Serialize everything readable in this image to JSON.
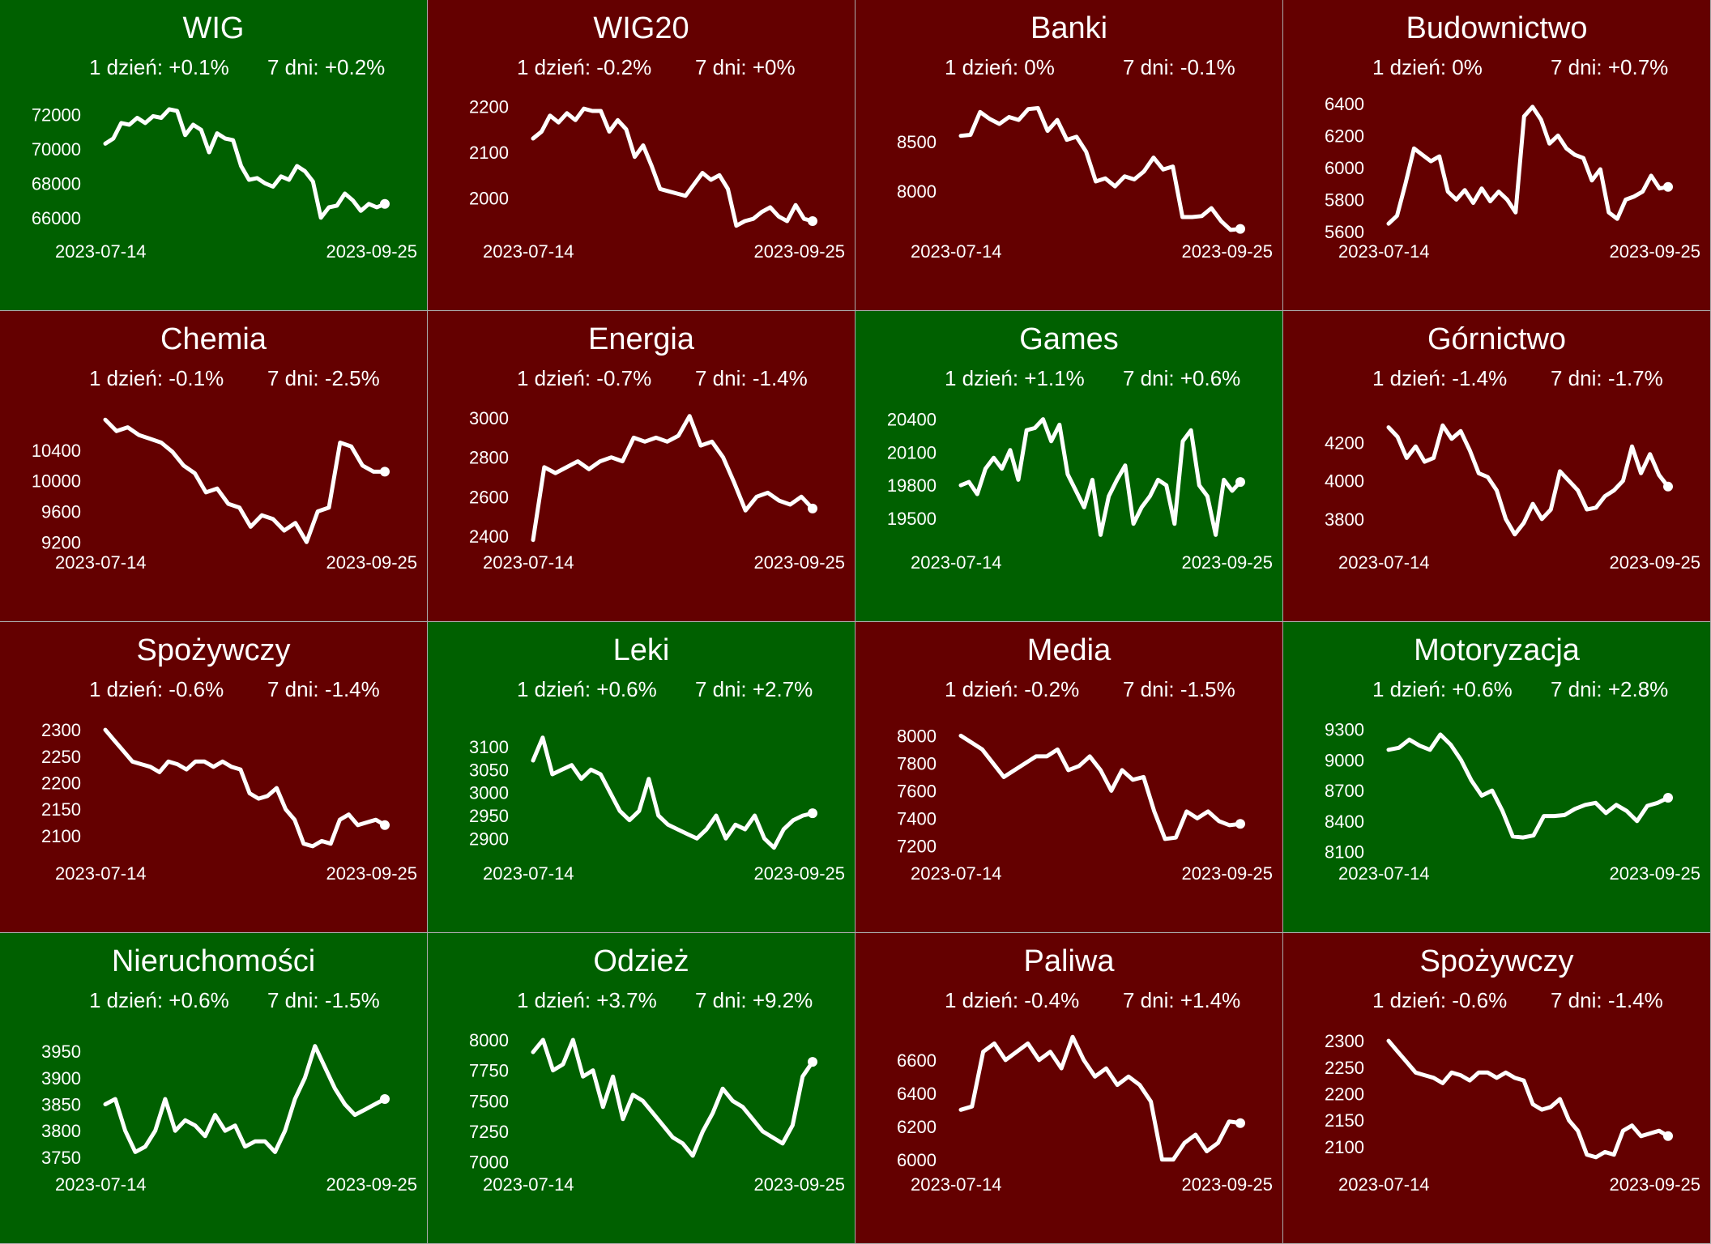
{
  "colors": {
    "up": "#006000",
    "down": "#640000",
    "line": "#ffffff"
  },
  "dates": {
    "start": "2023-07-14",
    "end": "2023-09-25"
  },
  "chart_data": [
    {
      "type": "line",
      "title": "WIG",
      "trend": "up",
      "day1": "1 dzień: +0.1%",
      "day7": "7 dni: +0.2%",
      "yticks": [
        72000,
        70000,
        68000,
        66000
      ],
      "ylim": [
        65000,
        73000
      ],
      "values": [
        70300,
        70600,
        71500,
        71400,
        71800,
        71500,
        71900,
        71800,
        72300,
        72200,
        70800,
        71400,
        71100,
        69800,
        70900,
        70600,
        70500,
        69000,
        68200,
        68300,
        68000,
        67800,
        68400,
        68200,
        69000,
        68700,
        68100,
        66000,
        66600,
        66700,
        67400,
        67000,
        66400,
        66800,
        66600,
        66800
      ]
    },
    {
      "type": "line",
      "title": "WIG20",
      "trend": "down",
      "day1": "1 dzień: -0.2%",
      "day7": "7 dni: +0%",
      "yticks": [
        2200,
        2100,
        2000
      ],
      "ylim": [
        1920,
        2220
      ],
      "values": [
        2130,
        2145,
        2180,
        2165,
        2185,
        2170,
        2195,
        2190,
        2190,
        2145,
        2170,
        2150,
        2090,
        2115,
        2070,
        2020,
        2015,
        2010,
        2005,
        2030,
        2055,
        2040,
        2050,
        2020,
        1940,
        1950,
        1955,
        1970,
        1980,
        1960,
        1950,
        1985,
        1955,
        1950
      ]
    },
    {
      "type": "line",
      "title": "Banki",
      "trend": "down",
      "day1": "1 dzień: 0%",
      "day7": "7 dni: -0.1%",
      "yticks": [
        8500,
        8000
      ],
      "ylim": [
        7560,
        8950
      ],
      "values": [
        8560,
        8570,
        8800,
        8730,
        8680,
        8750,
        8720,
        8830,
        8840,
        8610,
        8720,
        8520,
        8550,
        8400,
        8100,
        8130,
        8050,
        8150,
        8120,
        8200,
        8340,
        8220,
        8250,
        7740,
        7740,
        7750,
        7830,
        7700,
        7610,
        7620
      ]
    },
    {
      "type": "line",
      "title": "Budownictwo",
      "trend": "down",
      "day1": "1 dzień: 0%",
      "day7": "7 dni: +0.7%",
      "yticks": [
        6400,
        6200,
        6000,
        5800,
        5600
      ],
      "ylim": [
        5580,
        6440
      ],
      "values": [
        5650,
        5700,
        5900,
        6120,
        6080,
        6040,
        6070,
        5850,
        5800,
        5860,
        5780,
        5870,
        5790,
        5850,
        5800,
        5720,
        6320,
        6380,
        6300,
        6150,
        6200,
        6120,
        6080,
        6060,
        5920,
        5990,
        5720,
        5680,
        5800,
        5820,
        5850,
        5950,
        5870,
        5880
      ]
    },
    {
      "type": "line",
      "title": "Chemia",
      "trend": "down",
      "day1": "1 dzień: -0.1%",
      "day7": "7 dni: -2.5%",
      "yticks": [
        10400,
        10000,
        9600,
        9200
      ],
      "ylim": [
        9150,
        10950
      ],
      "values": [
        10800,
        10650,
        10700,
        10600,
        10550,
        10500,
        10380,
        10200,
        10100,
        9850,
        9900,
        9700,
        9650,
        9400,
        9550,
        9500,
        9350,
        9450,
        9200,
        9600,
        9650,
        10500,
        10450,
        10200,
        10120,
        10120
      ]
    },
    {
      "type": "line",
      "title": "Energia",
      "trend": "down",
      "day1": "1 dzień: -0.7%",
      "day7": "7 dni: -1.4%",
      "yticks": [
        3000,
        2800,
        2600,
        2400
      ],
      "ylim": [
        2350,
        3050
      ],
      "values": [
        2380,
        2750,
        2720,
        2750,
        2780,
        2740,
        2780,
        2800,
        2780,
        2900,
        2880,
        2900,
        2880,
        2910,
        3010,
        2860,
        2880,
        2800,
        2670,
        2530,
        2600,
        2620,
        2580,
        2560,
        2600,
        2540
      ]
    },
    {
      "type": "line",
      "title": "Games",
      "trend": "up",
      "day1": "1 dzień: +1.1%",
      "day7": "7 dni: +0.6%",
      "yticks": [
        20400,
        20100,
        19800,
        19500
      ],
      "ylim": [
        19250,
        20500
      ],
      "values": [
        19800,
        19830,
        19720,
        19950,
        20050,
        19950,
        20120,
        19850,
        20300,
        20320,
        20400,
        20200,
        20350,
        19900,
        19750,
        19600,
        19850,
        19350,
        19700,
        19850,
        19980,
        19450,
        19600,
        19700,
        19850,
        19800,
        19450,
        20200,
        20300,
        19800,
        19700,
        19350,
        19850,
        19750,
        19830
      ]
    },
    {
      "type": "line",
      "title": "Górnictwo",
      "trend": "down",
      "day1": "1 dzień: -1.4%",
      "day7": "7 dni: -1.7%",
      "yticks": [
        4200,
        4000,
        3800
      ],
      "ylim": [
        3660,
        4380
      ],
      "values": [
        4280,
        4230,
        4120,
        4180,
        4100,
        4120,
        4290,
        4220,
        4260,
        4160,
        4040,
        4020,
        3950,
        3800,
        3720,
        3780,
        3880,
        3800,
        3850,
        4050,
        4000,
        3950,
        3850,
        3860,
        3920,
        3950,
        4000,
        4180,
        4040,
        4140,
        4030,
        3970
      ]
    },
    {
      "type": "line",
      "title": "Spożywczy",
      "trend": "down",
      "day1": "1 dzień: -0.6%",
      "day7": "7 dni: -1.4%",
      "yticks": [
        2300,
        2250,
        2200,
        2150,
        2100
      ],
      "ylim": [
        2060,
        2320
      ],
      "values": [
        2300,
        2280,
        2260,
        2240,
        2235,
        2230,
        2220,
        2240,
        2235,
        2225,
        2240,
        2240,
        2230,
        2240,
        2230,
        2225,
        2180,
        2170,
        2175,
        2190,
        2150,
        2130,
        2085,
        2080,
        2090,
        2085,
        2130,
        2140,
        2120,
        2125,
        2130,
        2120
      ]
    },
    {
      "type": "line",
      "title": "Leki",
      "trend": "up",
      "day1": "1 dzień: +0.6%",
      "day7": "7 dni: +2.7%",
      "yticks": [
        3100,
        3050,
        3000,
        2950,
        2900
      ],
      "ylim": [
        2860,
        3160
      ],
      "values": [
        3070,
        3120,
        3040,
        3050,
        3060,
        3030,
        3050,
        3040,
        3000,
        2960,
        2940,
        2960,
        3030,
        2950,
        2930,
        2920,
        2910,
        2900,
        2920,
        2950,
        2900,
        2930,
        2920,
        2950,
        2900,
        2880,
        2920,
        2940,
        2950,
        2955
      ]
    },
    {
      "type": "line",
      "title": "Media",
      "trend": "down",
      "day1": "1 dzień: -0.2%",
      "day7": "7 dni: -1.5%",
      "yticks": [
        8000,
        7800,
        7600,
        7400,
        7200
      ],
      "ylim": [
        7120,
        8120
      ],
      "values": [
        8000,
        7950,
        7900,
        7800,
        7700,
        7750,
        7800,
        7850,
        7850,
        7900,
        7750,
        7780,
        7850,
        7750,
        7600,
        7750,
        7680,
        7700,
        7450,
        7250,
        7260,
        7450,
        7400,
        7450,
        7380,
        7350,
        7360
      ]
    },
    {
      "type": "line",
      "title": "Motoryzacja",
      "trend": "up",
      "day1": "1 dzień: +0.6%",
      "day7": "7 dni: +2.8%",
      "yticks": [
        9300,
        9000,
        8700,
        8400,
        8100
      ],
      "ylim": [
        8050,
        9400
      ],
      "values": [
        9100,
        9120,
        9200,
        9140,
        9100,
        9250,
        9150,
        9000,
        8800,
        8650,
        8700,
        8500,
        8250,
        8240,
        8260,
        8450,
        8450,
        8460,
        8520,
        8560,
        8580,
        8480,
        8560,
        8500,
        8400,
        8550,
        8580,
        8630
      ]
    },
    {
      "type": "line",
      "title": "Nieruchomości",
      "trend": "up",
      "day1": "1 dzień: +0.6%",
      "day7": "7 dni: -1.5%",
      "yticks": [
        3950,
        3900,
        3850,
        3800,
        3750
      ],
      "ylim": [
        3730,
        3990
      ],
      "values": [
        3850,
        3860,
        3800,
        3760,
        3770,
        3800,
        3860,
        3800,
        3820,
        3810,
        3790,
        3830,
        3800,
        3810,
        3770,
        3780,
        3780,
        3760,
        3800,
        3860,
        3900,
        3960,
        3920,
        3880,
        3850,
        3830,
        3840,
        3850,
        3860
      ]
    },
    {
      "type": "line",
      "title": "Odzież",
      "trend": "up",
      "day1": "1 dzień: +3.7%",
      "day7": "7 dni: +9.2%",
      "yticks": [
        8000,
        7750,
        7500,
        7250,
        7000
      ],
      "ylim": [
        6950,
        8080
      ],
      "values": [
        7900,
        8000,
        7750,
        7800,
        8000,
        7700,
        7750,
        7450,
        7700,
        7350,
        7550,
        7500,
        7400,
        7300,
        7200,
        7150,
        7050,
        7250,
        7400,
        7600,
        7500,
        7450,
        7350,
        7250,
        7200,
        7150,
        7300,
        7700,
        7820
      ]
    },
    {
      "type": "line",
      "title": "Paliwa",
      "trend": "down",
      "day1": "1 dzień: -0.4%",
      "day7": "7 dni: +1.4%",
      "yticks": [
        6600,
        6400,
        6200,
        6000
      ],
      "ylim": [
        5950,
        6780
      ],
      "values": [
        6300,
        6320,
        6650,
        6700,
        6600,
        6650,
        6700,
        6600,
        6650,
        6550,
        6740,
        6600,
        6500,
        6550,
        6450,
        6500,
        6450,
        6350,
        6000,
        6000,
        6100,
        6150,
        6050,
        6100,
        6230,
        6220
      ]
    },
    {
      "type": "line",
      "title": "Spożywczy",
      "trend": "down",
      "day1": "1 dzień: -0.6%",
      "day7": "7 dni: -1.4%",
      "yticks": [
        2300,
        2250,
        2200,
        2150,
        2100
      ],
      "ylim": [
        2060,
        2320
      ],
      "values": [
        2300,
        2280,
        2260,
        2240,
        2235,
        2230,
        2220,
        2240,
        2235,
        2225,
        2240,
        2240,
        2230,
        2240,
        2230,
        2225,
        2180,
        2170,
        2175,
        2190,
        2150,
        2130,
        2085,
        2080,
        2090,
        2085,
        2130,
        2140,
        2120,
        2125,
        2130,
        2120
      ]
    }
  ]
}
